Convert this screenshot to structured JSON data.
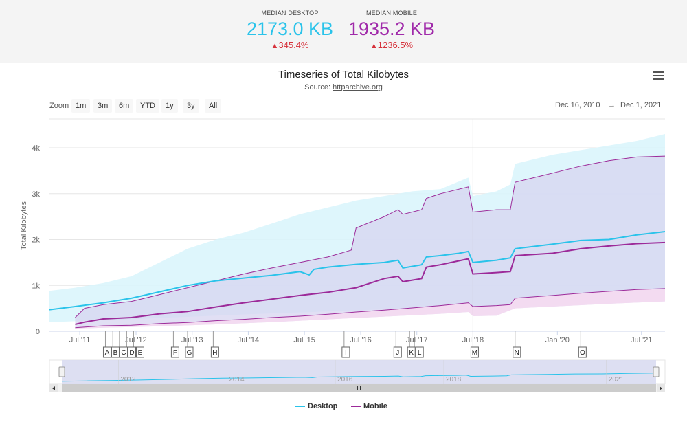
{
  "kpis": {
    "desktop": {
      "label": "MEDIAN DESKTOP",
      "value": "2173.0 KB",
      "change": "345.4%"
    },
    "mobile": {
      "label": "MEDIAN MOBILE",
      "value": "1935.2 KB",
      "change": "1236.5%"
    }
  },
  "toolbar": {
    "zoom_label": "Zoom",
    "zoom_buttons": [
      "1m",
      "3m",
      "6m",
      "YTD",
      "1y",
      "3y",
      "All"
    ],
    "range_from": "Dec 16, 2010",
    "range_arrow": "→",
    "range_to": "Dec 1, 2021"
  },
  "colors": {
    "desktop": "#2ac3ea",
    "mobile": "#9c2a99",
    "desktop_band": "#d8f4fc",
    "mobile_band": "#f5daf1",
    "change": "#d6303a"
  },
  "icons": {
    "menu": "hamburger-menu-icon",
    "change": "triangle-up-icon"
  },
  "chart_data": {
    "type": "line",
    "title": "Timeseries of Total Kilobytes",
    "subtitle_prefix": "Source: ",
    "subtitle_link": "httparchive.org",
    "ylabel": "Total Kilobytes",
    "ylim": [
      0,
      4600
    ],
    "y_ticks": [
      0,
      1000,
      2000,
      3000,
      4000
    ],
    "y_tick_labels": [
      "0",
      "1k",
      "2k",
      "3k",
      "4k"
    ],
    "x_range": [
      "2010-12-16",
      "2021-12-01"
    ],
    "x_tick_labels": [
      {
        "date": "2011-07-01",
        "label": "Jul '11"
      },
      {
        "date": "2012-07-01",
        "label": "Jul '12"
      },
      {
        "date": "2013-07-01",
        "label": "Jul '13"
      },
      {
        "date": "2014-07-01",
        "label": "Jul '14"
      },
      {
        "date": "2015-07-01",
        "label": "Jul '15"
      },
      {
        "date": "2016-07-01",
        "label": "Jul '16"
      },
      {
        "date": "2017-07-01",
        "label": "Jul '17"
      },
      {
        "date": "2018-07-01",
        "label": "Jul '18"
      },
      {
        "date": "2020-01-01",
        "label": "Jan '20"
      },
      {
        "date": "2021-07-01",
        "label": "Jul '21"
      }
    ],
    "crosshair_date": "2018-07-01",
    "series": [
      {
        "name": "Desktop",
        "median": [
          [
            "2010-12-16",
            470
          ],
          [
            "2011-06-01",
            540
          ],
          [
            "2011-12-01",
            620
          ],
          [
            "2012-06-01",
            720
          ],
          [
            "2012-12-01",
            860
          ],
          [
            "2013-06-01",
            1000
          ],
          [
            "2013-12-01",
            1100
          ],
          [
            "2014-06-01",
            1160
          ],
          [
            "2014-12-01",
            1220
          ],
          [
            "2015-06-01",
            1300
          ],
          [
            "2015-08-01",
            1230
          ],
          [
            "2015-09-01",
            1350
          ],
          [
            "2015-12-01",
            1400
          ],
          [
            "2016-06-01",
            1460
          ],
          [
            "2016-12-01",
            1500
          ],
          [
            "2017-03-01",
            1550
          ],
          [
            "2017-04-01",
            1380
          ],
          [
            "2017-08-01",
            1450
          ],
          [
            "2017-09-01",
            1620
          ],
          [
            "2017-12-01",
            1650
          ],
          [
            "2018-04-01",
            1700
          ],
          [
            "2018-06-01",
            1740
          ],
          [
            "2018-07-01",
            1500
          ],
          [
            "2018-12-01",
            1550
          ],
          [
            "2019-03-01",
            1600
          ],
          [
            "2019-04-01",
            1800
          ],
          [
            "2019-12-01",
            1900
          ],
          [
            "2020-06-01",
            1980
          ],
          [
            "2020-12-01",
            2000
          ],
          [
            "2021-06-01",
            2100
          ],
          [
            "2021-12-01",
            2173
          ]
        ],
        "band_high": [
          [
            "2010-12-16",
            880
          ],
          [
            "2011-06-01",
            950
          ],
          [
            "2011-12-01",
            1050
          ],
          [
            "2012-06-01",
            1200
          ],
          [
            "2012-12-01",
            1500
          ],
          [
            "2013-06-01",
            1800
          ],
          [
            "2013-12-01",
            2000
          ],
          [
            "2014-06-01",
            2150
          ],
          [
            "2014-12-01",
            2350
          ],
          [
            "2015-06-01",
            2550
          ],
          [
            "2015-12-01",
            2700
          ],
          [
            "2016-06-01",
            2850
          ],
          [
            "2016-12-01",
            2950
          ],
          [
            "2017-06-01",
            3050
          ],
          [
            "2017-12-01",
            3100
          ],
          [
            "2018-06-01",
            3350
          ],
          [
            "2018-07-01",
            2950
          ],
          [
            "2018-12-01",
            3050
          ],
          [
            "2019-03-01",
            3200
          ],
          [
            "2019-04-01",
            3650
          ],
          [
            "2019-12-01",
            3850
          ],
          [
            "2020-06-01",
            3950
          ],
          [
            "2020-12-01",
            4050
          ],
          [
            "2021-06-01",
            4150
          ],
          [
            "2021-12-01",
            4300
          ]
        ],
        "band_low": [
          [
            "2010-12-16",
            200
          ],
          [
            "2011-12-01",
            240
          ],
          [
            "2012-12-01",
            290
          ],
          [
            "2013-12-01",
            340
          ],
          [
            "2014-12-01",
            390
          ],
          [
            "2015-12-01",
            430
          ],
          [
            "2016-12-01",
            480
          ],
          [
            "2017-12-01",
            520
          ],
          [
            "2018-12-01",
            540
          ],
          [
            "2019-12-01",
            620
          ],
          [
            "2020-12-01",
            700
          ],
          [
            "2021-12-01",
            780
          ]
        ]
      },
      {
        "name": "Mobile",
        "median": [
          [
            "2011-06-01",
            150
          ],
          [
            "2011-08-01",
            200
          ],
          [
            "2011-12-01",
            270
          ],
          [
            "2012-06-01",
            300
          ],
          [
            "2012-12-01",
            380
          ],
          [
            "2013-06-01",
            430
          ],
          [
            "2013-12-01",
            530
          ],
          [
            "2014-06-01",
            620
          ],
          [
            "2014-12-01",
            700
          ],
          [
            "2015-06-01",
            780
          ],
          [
            "2015-12-01",
            850
          ],
          [
            "2016-06-01",
            950
          ],
          [
            "2016-12-01",
            1150
          ],
          [
            "2017-03-01",
            1200
          ],
          [
            "2017-04-01",
            1080
          ],
          [
            "2017-08-01",
            1150
          ],
          [
            "2017-09-01",
            1400
          ],
          [
            "2017-12-01",
            1450
          ],
          [
            "2018-06-01",
            1580
          ],
          [
            "2018-07-01",
            1250
          ],
          [
            "2018-12-01",
            1280
          ],
          [
            "2019-03-01",
            1300
          ],
          [
            "2019-04-01",
            1650
          ],
          [
            "2019-12-01",
            1700
          ],
          [
            "2020-06-01",
            1800
          ],
          [
            "2020-12-01",
            1860
          ],
          [
            "2021-06-01",
            1910
          ],
          [
            "2021-12-01",
            1935
          ]
        ],
        "band_high": [
          [
            "2011-06-01",
            300
          ],
          [
            "2011-08-01",
            500
          ],
          [
            "2011-12-01",
            580
          ],
          [
            "2012-06-01",
            650
          ],
          [
            "2012-12-01",
            800
          ],
          [
            "2013-06-01",
            950
          ],
          [
            "2013-12-01",
            1100
          ],
          [
            "2014-06-01",
            1250
          ],
          [
            "2014-12-01",
            1380
          ],
          [
            "2015-06-01",
            1500
          ],
          [
            "2015-12-01",
            1620
          ],
          [
            "2016-05-01",
            1770
          ],
          [
            "2016-06-01",
            2250
          ],
          [
            "2016-12-01",
            2500
          ],
          [
            "2017-03-01",
            2650
          ],
          [
            "2017-04-01",
            2550
          ],
          [
            "2017-08-01",
            2650
          ],
          [
            "2017-09-01",
            2900
          ],
          [
            "2017-12-01",
            3000
          ],
          [
            "2018-06-01",
            3150
          ],
          [
            "2018-07-01",
            2600
          ],
          [
            "2018-12-01",
            2650
          ],
          [
            "2019-03-01",
            2650
          ],
          [
            "2019-04-01",
            3250
          ],
          [
            "2019-12-01",
            3450
          ],
          [
            "2020-06-01",
            3600
          ],
          [
            "2020-12-01",
            3720
          ],
          [
            "2021-06-01",
            3800
          ],
          [
            "2021-12-01",
            3820
          ]
        ],
        "band_low": [
          [
            "2011-06-01",
            60
          ],
          [
            "2011-12-01",
            80
          ],
          [
            "2012-12-01",
            110
          ],
          [
            "2013-12-01",
            150
          ],
          [
            "2014-12-01",
            200
          ],
          [
            "2015-12-01",
            260
          ],
          [
            "2016-12-01",
            320
          ],
          [
            "2017-12-01",
            380
          ],
          [
            "2018-06-01",
            420
          ],
          [
            "2018-07-01",
            330
          ],
          [
            "2018-12-01",
            340
          ],
          [
            "2019-04-01",
            500
          ],
          [
            "2019-12-01",
            540
          ],
          [
            "2020-12-01",
            600
          ],
          [
            "2021-12-01",
            650
          ]
        ]
      }
    ],
    "mobile_p10": [
      [
        "2011-06-01",
        80
      ],
      [
        "2011-12-01",
        120
      ],
      [
        "2012-06-01",
        130
      ],
      [
        "2012-12-01",
        170
      ],
      [
        "2013-06-01",
        190
      ],
      [
        "2013-12-01",
        230
      ],
      [
        "2014-06-01",
        260
      ],
      [
        "2014-12-01",
        300
      ],
      [
        "2015-06-01",
        330
      ],
      [
        "2015-12-01",
        370
      ],
      [
        "2016-06-01",
        420
      ],
      [
        "2016-12-01",
        460
      ],
      [
        "2017-06-01",
        510
      ],
      [
        "2017-12-01",
        560
      ],
      [
        "2018-06-01",
        620
      ],
      [
        "2018-07-01",
        540
      ],
      [
        "2018-12-01",
        560
      ],
      [
        "2019-03-01",
        580
      ],
      [
        "2019-04-01",
        720
      ],
      [
        "2019-12-01",
        780
      ],
      [
        "2020-06-01",
        830
      ],
      [
        "2020-12-01",
        870
      ],
      [
        "2021-06-01",
        910
      ],
      [
        "2021-12-01",
        930
      ]
    ],
    "mobile_p90_visible": true,
    "flags": [
      {
        "label": "A",
        "date": "2011-12-15"
      },
      {
        "label": "B",
        "date": "2012-02-01"
      },
      {
        "label": "C",
        "date": "2012-03-15"
      },
      {
        "label": "D",
        "date": "2012-05-01"
      },
      {
        "label": "E",
        "date": "2012-06-15"
      },
      {
        "label": "F",
        "date": "2013-03-01"
      },
      {
        "label": "G",
        "date": "2013-06-01"
      },
      {
        "label": "H",
        "date": "2013-11-15"
      },
      {
        "label": "I",
        "date": "2016-03-15"
      },
      {
        "label": "J",
        "date": "2017-02-15"
      },
      {
        "label": "K",
        "date": "2017-05-15"
      },
      {
        "label": "L",
        "date": "2017-06-15"
      },
      {
        "label": "M",
        "date": "2018-07-01"
      },
      {
        "label": "N",
        "date": "2019-04-01"
      },
      {
        "label": "O",
        "date": "2020-06-01"
      }
    ],
    "navigator_labels": [
      "2012",
      "2014",
      "2016",
      "2018",
      "2021"
    ],
    "legend": [
      "Desktop",
      "Mobile"
    ]
  }
}
